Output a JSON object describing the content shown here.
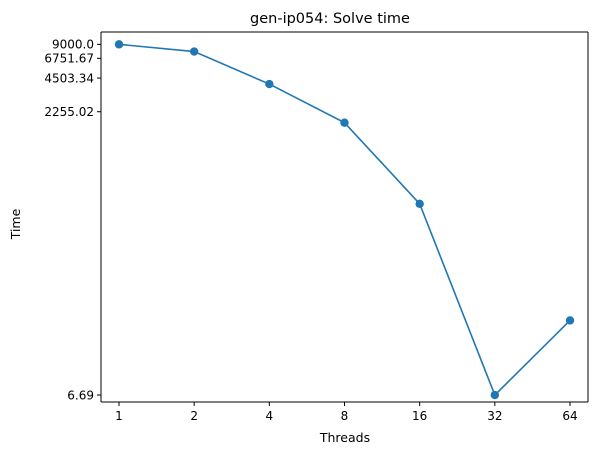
{
  "chart_data": {
    "type": "line",
    "title": "gen-ip054: Solve time",
    "xlabel": "Threads",
    "ylabel": "Time",
    "categories": [
      "1",
      "2",
      "4",
      "8",
      "16",
      "32",
      "64"
    ],
    "y_scale": "log",
    "y_ticks": [
      9000.0,
      6751.67,
      4503.34,
      2255.02,
      6.69
    ],
    "y_tick_labels": [
      "9000.0",
      "6751.67",
      "4503.34",
      "2255.02",
      "6.69"
    ],
    "ylim": [
      5.8,
      11600
    ],
    "series": [
      {
        "values": [
          9000.0,
          7760,
          3980,
          1800,
          340,
          6.69,
          31
        ],
        "color": "#1f77b4",
        "marker": "circle"
      }
    ],
    "grid": false,
    "legend": "none"
  }
}
